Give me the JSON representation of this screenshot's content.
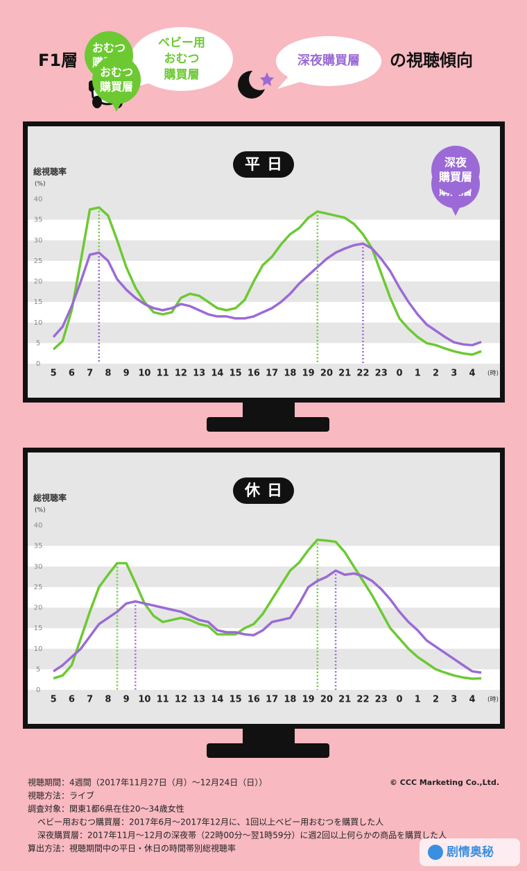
{
  "header": {
    "title_left": "F1層",
    "bubble_baby": [
      "ベビー用",
      "おむつ",
      "購買層"
    ],
    "bubble_night": "深夜購買層",
    "title_right": "の視聴傾向"
  },
  "chart_data": [
    {
      "type": "line",
      "title": "平日",
      "ylabel": "総視聴率",
      "yunit": "(%)",
      "xlabel": "(時)",
      "x": [
        5,
        5.5,
        6,
        6.5,
        7,
        7.5,
        8,
        8.5,
        9,
        9.5,
        10,
        10.5,
        11,
        11.5,
        12,
        12.5,
        13,
        13.5,
        14,
        14.5,
        15,
        15.5,
        16,
        16.5,
        17,
        17.5,
        18,
        18.5,
        19,
        19.5,
        20,
        20.5,
        21,
        21.5,
        22,
        22.5,
        23,
        23.5,
        24,
        24.5,
        25,
        25.5,
        26,
        26.5,
        27,
        27.5,
        28,
        28.5
      ],
      "series": [
        {
          "name": [
            "おむつ",
            "購買層"
          ],
          "color": "#6cc932",
          "values": [
            3.5,
            5.5,
            13,
            25,
            37.5,
            38,
            36,
            30,
            23.5,
            18.5,
            15,
            12.5,
            12,
            12.5,
            16,
            17,
            16.5,
            15,
            13.5,
            13,
            13.5,
            15.5,
            20,
            24,
            26,
            29,
            31.5,
            33,
            35.5,
            37,
            36.5,
            36,
            35.5,
            34,
            31.5,
            28,
            22,
            16,
            11,
            8.5,
            6.5,
            5,
            4.5,
            3.7,
            3,
            2.5,
            2.2,
            3
          ]
        },
        {
          "name": [
            "深夜",
            "購買層"
          ],
          "color": "#9b6ad6",
          "values": [
            6.5,
            9,
            14,
            20,
            26.5,
            27,
            25,
            20.5,
            18,
            16,
            14.5,
            13.5,
            13,
            13.5,
            14.5,
            14,
            13,
            12,
            11.5,
            11.5,
            11,
            11,
            11.5,
            12.5,
            13.5,
            15,
            17,
            19.5,
            21.5,
            23.5,
            25.5,
            27,
            28,
            28.8,
            29.2,
            28,
            25.5,
            22.5,
            18.5,
            15,
            12,
            9.5,
            8,
            6.5,
            5.2,
            4.7,
            4.5,
            5.3
          ]
        }
      ],
      "highlights": [
        {
          "series": 0,
          "x": 7.5
        },
        {
          "series": 0,
          "x": 19.5
        },
        {
          "series": 1,
          "x": 7.5
        },
        {
          "series": 1,
          "x": 22
        }
      ],
      "ylim": [
        0,
        40
      ],
      "yticks": [
        0,
        5,
        10,
        15,
        20,
        25,
        30,
        35,
        40
      ],
      "xlim": [
        4.5,
        28.8
      ],
      "xticks": [
        5,
        6,
        7,
        8,
        9,
        10,
        11,
        12,
        13,
        14,
        15,
        16,
        17,
        18,
        19,
        20,
        21,
        22,
        23,
        {
          "value": 24,
          "label": "0"
        },
        {
          "value": 25,
          "label": "1"
        },
        {
          "value": 26,
          "label": "2"
        },
        {
          "value": 27,
          "label": "3"
        },
        {
          "value": 28,
          "label": "4"
        }
      ]
    },
    {
      "type": "line",
      "title": "休日",
      "ylabel": "総視聴率",
      "yunit": "(%)",
      "xlabel": "(時)",
      "x": [
        5,
        5.5,
        6,
        6.5,
        7,
        7.5,
        8,
        8.5,
        9,
        9.5,
        10,
        10.5,
        11,
        11.5,
        12,
        12.5,
        13,
        13.5,
        14,
        14.5,
        15,
        15.5,
        16,
        16.5,
        17,
        17.5,
        18,
        18.5,
        19,
        19.5,
        20,
        20.5,
        21,
        21.5,
        22,
        22.5,
        23,
        23.5,
        24,
        24.5,
        25,
        25.5,
        26,
        26.5,
        27,
        27.5,
        28,
        28.5
      ],
      "series": [
        {
          "name": [
            "おむつ",
            "購買層"
          ],
          "color": "#6cc932",
          "values": [
            2.8,
            3.5,
            6,
            12.5,
            19,
            25,
            28,
            30.8,
            30.8,
            26,
            21,
            18,
            16.5,
            17,
            17.5,
            17,
            16,
            15.5,
            13.5,
            13.5,
            13.5,
            15,
            16,
            18.5,
            22,
            25.5,
            29,
            31,
            34,
            36.5,
            36.3,
            36,
            33.5,
            30,
            26.5,
            23,
            19,
            15,
            12.5,
            10,
            8,
            6.5,
            5,
            4.2,
            3.5,
            3,
            2.7,
            2.8
          ]
        },
        {
          "name": [
            "深夜",
            "購買層"
          ],
          "color": "#9b6ad6",
          "values": [
            4.5,
            6,
            8,
            10,
            13,
            16,
            17.5,
            19,
            21,
            21.5,
            21,
            20.5,
            20,
            19.5,
            19,
            18,
            17,
            16.5,
            14.5,
            14,
            14,
            13.5,
            13.3,
            14.5,
            16.5,
            17,
            17.5,
            21,
            25,
            26.5,
            27.5,
            29,
            28,
            28.3,
            27.7,
            26.5,
            24.5,
            22,
            19,
            16.5,
            14.5,
            12,
            10.5,
            9,
            7.5,
            6,
            4.5,
            4.2
          ]
        }
      ],
      "highlights": [
        {
          "series": 0,
          "x": 8.5
        },
        {
          "series": 0,
          "x": 19.5
        },
        {
          "series": 1,
          "x": 9.5
        },
        {
          "series": 1,
          "x": 20.5
        }
      ],
      "ylim": [
        0,
        40
      ],
      "yticks": [
        0,
        5,
        10,
        15,
        20,
        25,
        30,
        35,
        40
      ],
      "xlim": [
        4.5,
        28.8
      ],
      "xticks": [
        5,
        6,
        7,
        8,
        9,
        10,
        11,
        12,
        13,
        14,
        15,
        16,
        17,
        18,
        19,
        20,
        21,
        22,
        23,
        {
          "value": 24,
          "label": "0"
        },
        {
          "value": 25,
          "label": "1"
        },
        {
          "value": 26,
          "label": "2"
        },
        {
          "value": 27,
          "label": "3"
        },
        {
          "value": 28,
          "label": "4"
        }
      ]
    }
  ],
  "footer": {
    "lines": [
      "視聴期間：4週間（2017年11月27日（月）～12月24日（日））",
      "視聴方法：ライブ",
      "調査対象：関東1都6県在住20～34歳女性",
      "ベビー用おむつ購買層：2017年6月～2017年12月に、1回以上ベビー用おむつを購買した人",
      "深夜購買層：2017年11月～12月の深夜帯（22時00分～翌1時59分）に週2回以上何らかの商品を購買した人",
      "算出方法：視聴期間中の平日・休日の時間帯別総視聴率"
    ],
    "copyright": "© CCC Marketing Co.,Ltd.",
    "watermark": "剧情奥秘"
  }
}
